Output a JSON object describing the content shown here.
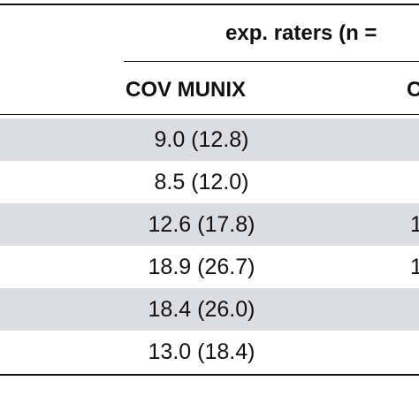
{
  "table": {
    "group_header": "exp. raters (n =",
    "columns": [
      "COV MUNIX",
      "C"
    ],
    "rows": [
      {
        "value": "9.0 (12.8)",
        "edge": ""
      },
      {
        "value": "8.5 (12.0)",
        "edge": ""
      },
      {
        "value": "12.6 (17.8)",
        "edge": "1"
      },
      {
        "value": "18.9 (26.7)",
        "edge": "1"
      },
      {
        "value": "18.4 (26.0)",
        "edge": ""
      },
      {
        "value": "13.0 (18.4)",
        "edge": ""
      }
    ]
  },
  "colors": {
    "shaded_row": "#dcdde2",
    "text": "#111111",
    "rule": "#111111"
  }
}
